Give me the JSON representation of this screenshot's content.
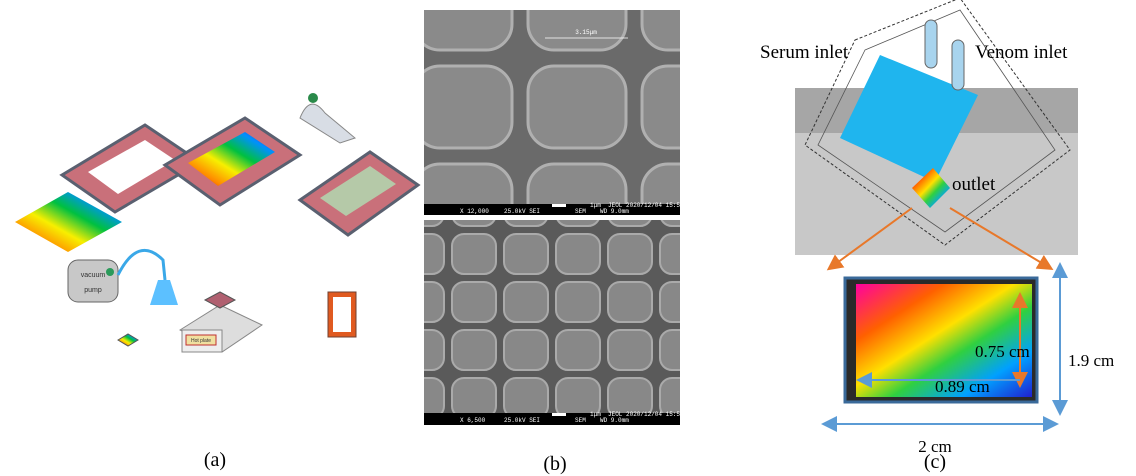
{
  "panels": [
    {
      "label": "(a)",
      "pump_labels": [
        "vacuum",
        "pump"
      ],
      "hot_plate_label": "Hot plate"
    },
    {
      "label": "(b)",
      "sem_images": [
        {
          "measurement": "3.15μm",
          "scale_bar": "1μm",
          "footer": [
            "X 12,000",
            "25.0kV SEI",
            "SEM",
            "JEOL",
            "WD 9.0mm",
            "2020/12/04 15:56:23"
          ]
        },
        {
          "scale_bar": "1μm",
          "footer": [
            "X 6,500",
            "25.0kV SEI",
            "SEM",
            "JEOL",
            "WD 9.0mm",
            "2020/12/04 15:55:03"
          ]
        }
      ]
    },
    {
      "label": "(c)",
      "inlets": [
        "Serum inlet",
        "Venom inlet"
      ],
      "outlet": "outlet",
      "dimensions": {
        "inner_height": "0.75 cm",
        "inner_width": "0.89 cm",
        "outer_height": "1.9 cm",
        "outer_width": "2 cm"
      }
    }
  ]
}
